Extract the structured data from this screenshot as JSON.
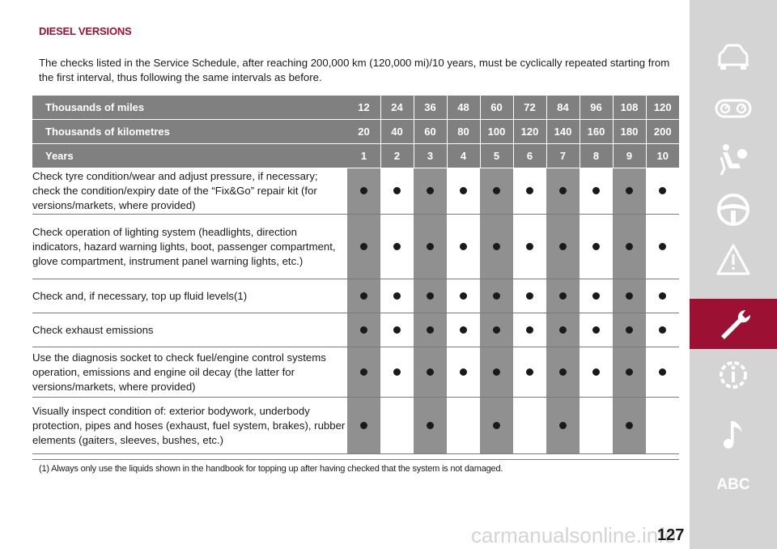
{
  "section_title": "DIESEL VERSIONS",
  "intro": "The checks listed in the Service Schedule, after reaching 200,000 km (120,000 mi)/10 years, must be cyclically repeated starting from the first interval, thus following the same intervals as before.",
  "headers": [
    {
      "label": "Thousands of miles",
      "values": [
        "12",
        "24",
        "36",
        "48",
        "60",
        "72",
        "84",
        "96",
        "108",
        "120"
      ]
    },
    {
      "label": "Thousands of kilometres",
      "values": [
        "20",
        "40",
        "60",
        "80",
        "100",
        "120",
        "140",
        "160",
        "180",
        "200"
      ]
    },
    {
      "label": "Years",
      "values": [
        "1",
        "2",
        "3",
        "4",
        "5",
        "6",
        "7",
        "8",
        "9",
        "10"
      ]
    }
  ],
  "rows": [
    {
      "text": "Check tyre condition/wear and adjust pressure, if necessary; check the condition/expiry date of the “Fix&Go” repair kit (for versions/markets, where provided)",
      "marks": [
        true,
        true,
        true,
        true,
        true,
        true,
        true,
        true,
        true,
        true
      ]
    },
    {
      "text": "Check operation of lighting system (headlights, direction indicators, hazard warning lights, boot, passenger compartment, glove compartment, instrument panel warning lights, etc.)",
      "marks": [
        true,
        true,
        true,
        true,
        true,
        true,
        true,
        true,
        true,
        true
      ]
    },
    {
      "text": "Check and, if necessary, top up fluid levels(1)",
      "marks": [
        true,
        true,
        true,
        true,
        true,
        true,
        true,
        true,
        true,
        true
      ]
    },
    {
      "text": "Check exhaust emissions",
      "marks": [
        true,
        true,
        true,
        true,
        true,
        true,
        true,
        true,
        true,
        true
      ]
    },
    {
      "text": "Use the diagnosis socket to check fuel/engine control systems operation, emissions and engine oil decay (the latter for versions/markets, where provided)",
      "marks": [
        true,
        true,
        true,
        true,
        true,
        true,
        true,
        true,
        true,
        true
      ]
    },
    {
      "text": "Visually inspect condition of: exterior bodywork, underbody protection, pipes and hoses (exhaust, fuel system, brakes), rubber elements (gaiters, sleeves, bushes, etc.)",
      "marks": [
        true,
        false,
        true,
        false,
        true,
        false,
        true,
        false,
        true,
        false
      ]
    }
  ],
  "footnote": "(1) Always only use the liquids shown in the handbook for topping up after having checked that the system is not damaged.",
  "page_number": "127",
  "watermark": "carmanualsonline.info",
  "sidebar": {
    "items": [
      {
        "icon": "car-icon"
      },
      {
        "icon": "dashboard-gauges-icon"
      },
      {
        "icon": "airbag-seat-icon"
      },
      {
        "icon": "steering-wheel-icon"
      },
      {
        "icon": "warning-triangle-icon"
      },
      {
        "icon": "wrench-icon",
        "active": true
      },
      {
        "icon": "info-gear-icon"
      },
      {
        "icon": "music-note-icon"
      },
      {
        "icon": "abc-index-icon",
        "label": "ABC"
      }
    ]
  },
  "colors": {
    "accent": "#9b1033",
    "header_bg": "#808080",
    "column_shade": "#909090",
    "sidebar_bg": "#d4d4d4"
  }
}
